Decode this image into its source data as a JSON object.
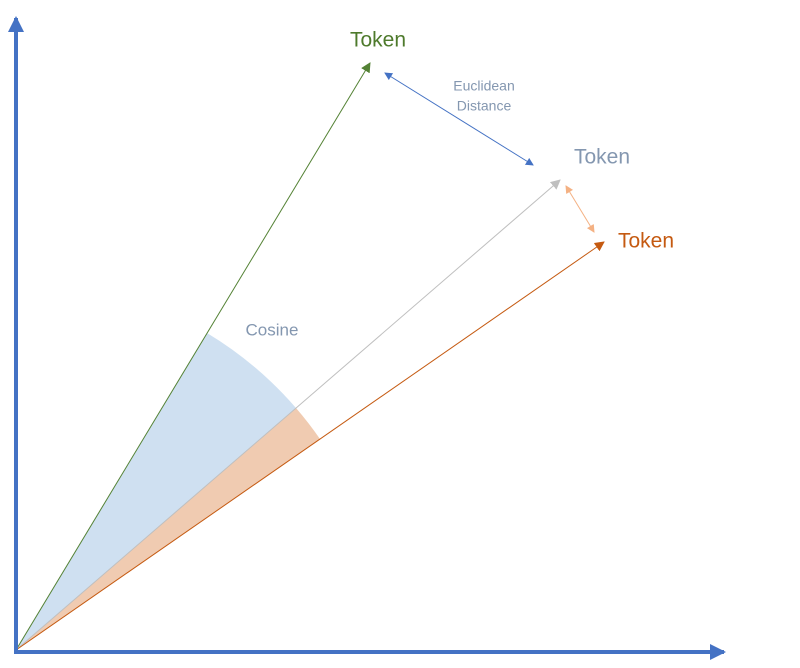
{
  "tokens": [
    {
      "label": "Token"
    },
    {
      "label": "Token"
    },
    {
      "label": "Token"
    }
  ],
  "annotations": {
    "euclidean_distance": [
      "Euclidean",
      "Distance"
    ],
    "cosine": "Cosine"
  }
}
